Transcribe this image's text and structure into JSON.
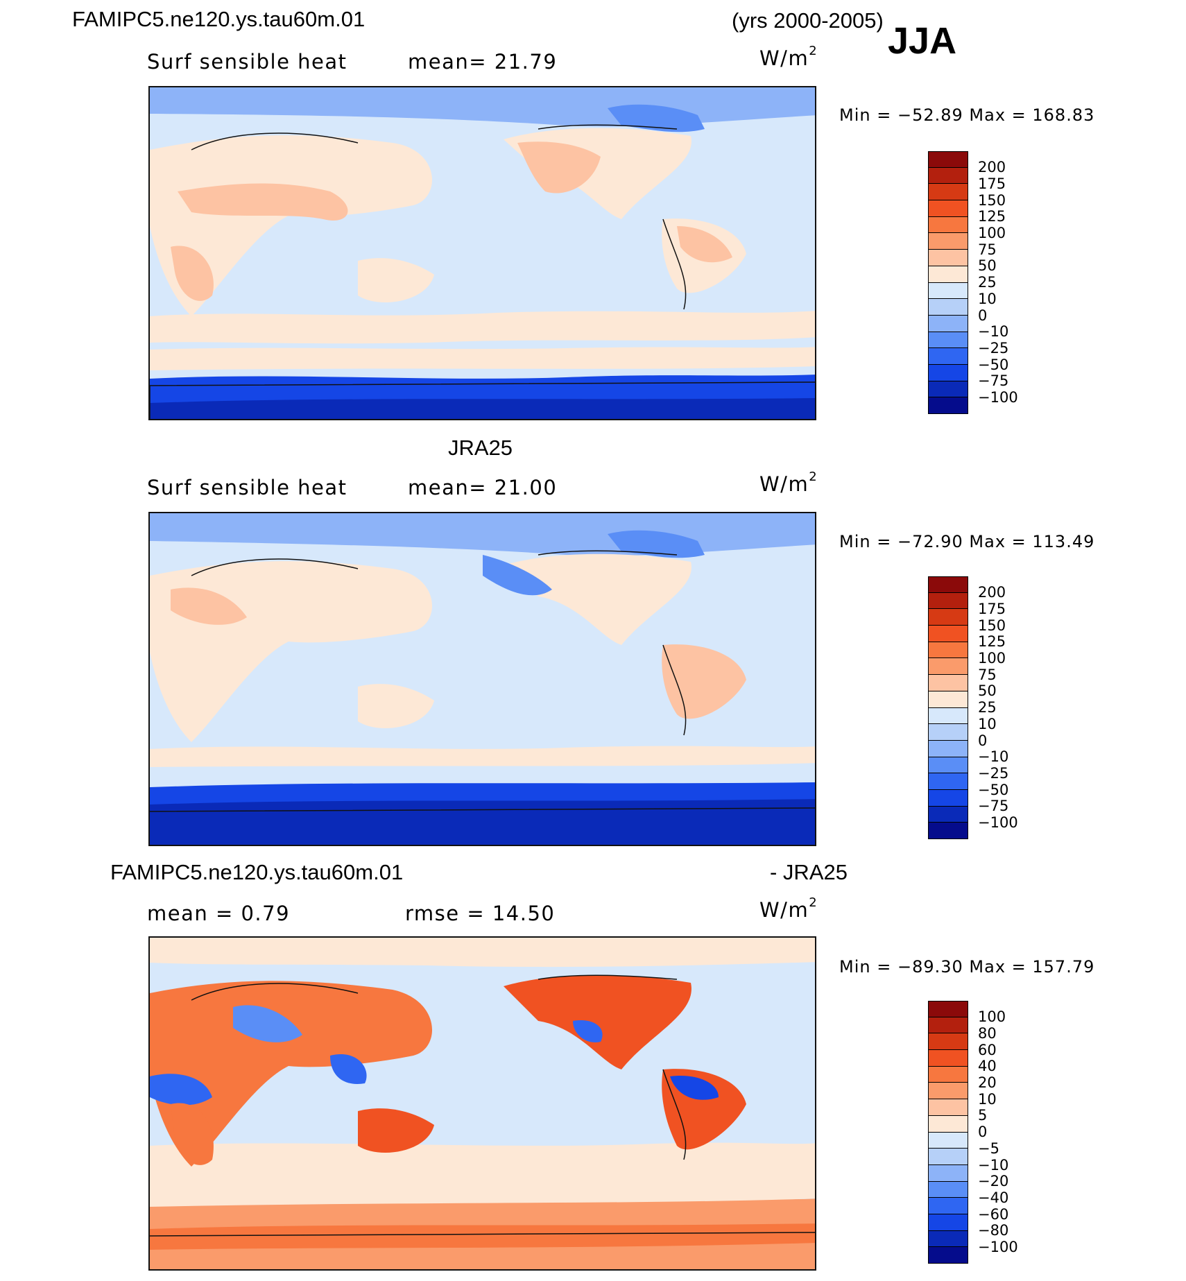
{
  "header": {
    "case_name": "FAMIPC5.ne120.ys.tau60m.01",
    "years": "(yrs 2000-2005)",
    "season": "JJA"
  },
  "panels": [
    {
      "title": "",
      "variable": "Surf  sensible  heat",
      "stat_text": "mean=  21.79",
      "units_base": "W/m",
      "units_exp": "2",
      "minmax": "Min  =  −52.89  Max  =  168.83",
      "colorbar_labels": [
        "200",
        "175",
        "150",
        "125",
        "100",
        "75",
        "50",
        "25",
        "10",
        "0",
        "−10",
        "−25",
        "−50",
        "−75",
        "−100"
      ]
    },
    {
      "title": "JRA25",
      "variable": "Surf  sensible  heat",
      "stat_text": "mean=  21.00",
      "units_base": "W/m",
      "units_exp": "2",
      "minmax": "Min  =  −72.90  Max  =  113.49",
      "colorbar_labels": [
        "200",
        "175",
        "150",
        "125",
        "100",
        "75",
        "50",
        "25",
        "10",
        "0",
        "−10",
        "−25",
        "−50",
        "−75",
        "−100"
      ]
    },
    {
      "title_left": "FAMIPC5.ne120.ys.tau60m.01",
      "title_right": "- JRA25",
      "stat_mean": "mean  =    0.79",
      "stat_rmse": "rmse  =   14.50",
      "units_base": "W/m",
      "units_exp": "2",
      "minmax": "Min  =  −89.30  Max  =  157.79",
      "colorbar_labels": [
        "100",
        "80",
        "60",
        "40",
        "20",
        "10",
        "5",
        "0",
        "−5",
        "−10",
        "−20",
        "−40",
        "−60",
        "−80",
        "−100"
      ]
    }
  ],
  "colors": {
    "palette_top_to_bottom": [
      "#8b0a0a",
      "#b3200e",
      "#d63a14",
      "#f05222",
      "#f7773f",
      "#fa9b6b",
      "#fdc3a3",
      "#fde8d6",
      "#d7e8fb",
      "#b6d0f8",
      "#8db3f8",
      "#5a8ef6",
      "#2f66f2",
      "#1546e6",
      "#0a2ab8",
      "#050c8c"
    ],
    "ocean_main": "#d7e8fb",
    "land_main": "#fde8d6",
    "polar_south": "#1546e6",
    "north_ocean": "#8db3f8"
  }
}
